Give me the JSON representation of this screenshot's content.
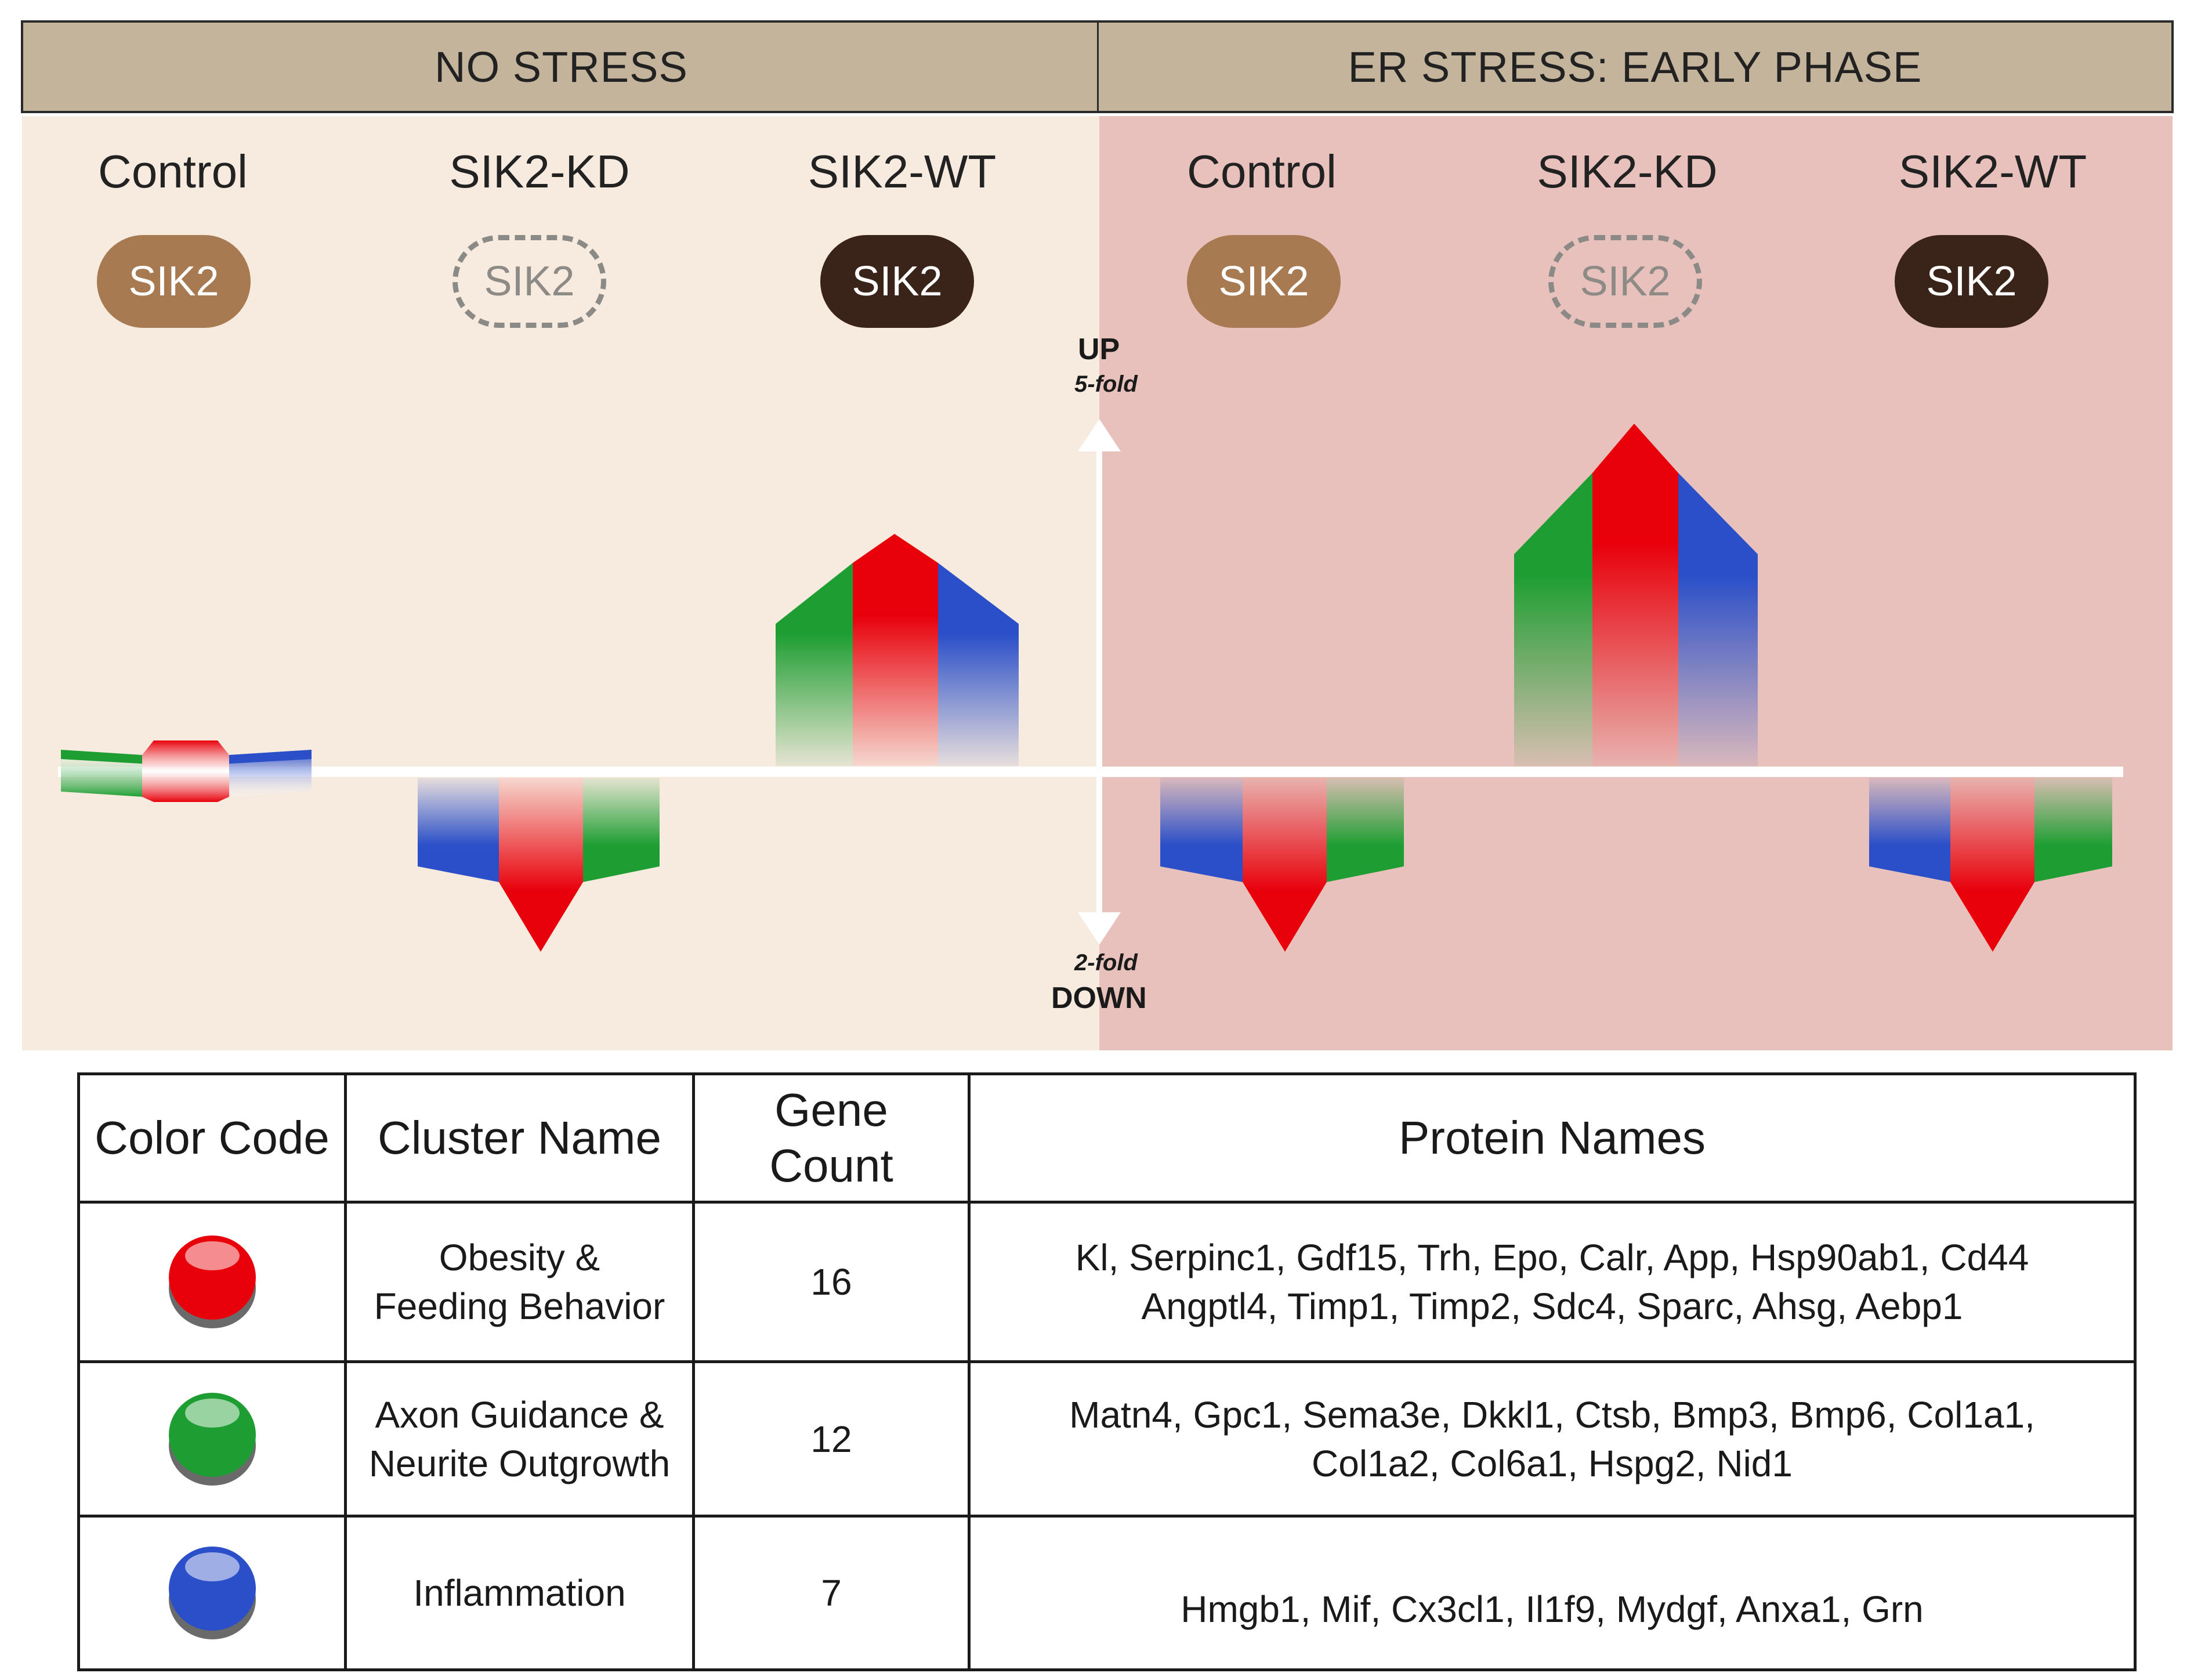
{
  "headers": {
    "left": "NO STRESS",
    "right": "ER STRESS: EARLY PHASE"
  },
  "columns": [
    {
      "title": "Control",
      "pill": "SIK2",
      "pill_style": "control"
    },
    {
      "title": "SIK2-KD",
      "pill": "SIK2",
      "pill_style": "kd"
    },
    {
      "title": "SIK2-WT",
      "pill": "SIK2",
      "pill_style": "wt"
    },
    {
      "title": "Control",
      "pill": "SIK2",
      "pill_style": "control"
    },
    {
      "title": "SIK2-KD",
      "pill": "SIK2",
      "pill_style": "kd"
    },
    {
      "title": "SIK2-WT",
      "pill": "SIK2",
      "pill_style": "wt"
    }
  ],
  "axis": {
    "up_label": "UP",
    "up_fold": "5-fold",
    "down_fold": "2-fold",
    "down_label": "DOWN"
  },
  "expression_markers": [
    {
      "group": "NO STRESS",
      "condition": "Control",
      "direction": "neutral",
      "order": [
        "green",
        "red",
        "blue"
      ]
    },
    {
      "group": "NO STRESS",
      "condition": "SIK2-KD",
      "direction": "down",
      "order": [
        "blue",
        "red",
        "green"
      ]
    },
    {
      "group": "NO STRESS",
      "condition": "SIK2-WT",
      "direction": "up",
      "order": [
        "green",
        "red",
        "blue"
      ]
    },
    {
      "group": "ER STRESS: EARLY PHASE",
      "condition": "Control",
      "direction": "down",
      "order": [
        "blue",
        "red",
        "green"
      ]
    },
    {
      "group": "ER STRESS: EARLY PHASE",
      "condition": "SIK2-KD",
      "direction": "up",
      "order": [
        "green",
        "red",
        "blue"
      ]
    },
    {
      "group": "ER STRESS: EARLY PHASE",
      "condition": "SIK2-WT",
      "direction": "down",
      "order": [
        "blue",
        "red",
        "green"
      ]
    }
  ],
  "colors": {
    "red": "#e8000b",
    "green": "#1e9e32",
    "blue": "#2a4fc8",
    "panel_left": "#f7eadf",
    "panel_right": "#e8c1bc",
    "header": "#c3b49b"
  },
  "table": {
    "headers": {
      "color_code": "Color Code",
      "cluster_name": "Cluster Name",
      "gene_count": "Gene\nCount",
      "protein_names": "Protein Names"
    },
    "rows": [
      {
        "color": "red",
        "cluster": "Obesity &\nFeeding Behavior",
        "count": "16",
        "proteins": "Kl, Serpinc1, Gdf15, Trh, Epo, Calr, App, Hsp90ab1, Cd44\nAngptl4, Timp1, Timp2, Sdc4, Sparc, Ahsg, Aebp1"
      },
      {
        "color": "green",
        "cluster": "Axon Guidance &\nNeurite Outgrowth",
        "count": "12",
        "proteins": "Matn4, Gpc1, Sema3e, Dkkl1, Ctsb, Bmp3, Bmp6, Col1a1,\nCol1a2, Col6a1, Hspg2, Nid1"
      },
      {
        "color": "blue",
        "cluster": "Inflammation",
        "count": "7",
        "proteins": "Hmgb1, Mif, Cx3cl1, Il1f9, Mydgf, Anxa1, Grn"
      }
    ]
  }
}
